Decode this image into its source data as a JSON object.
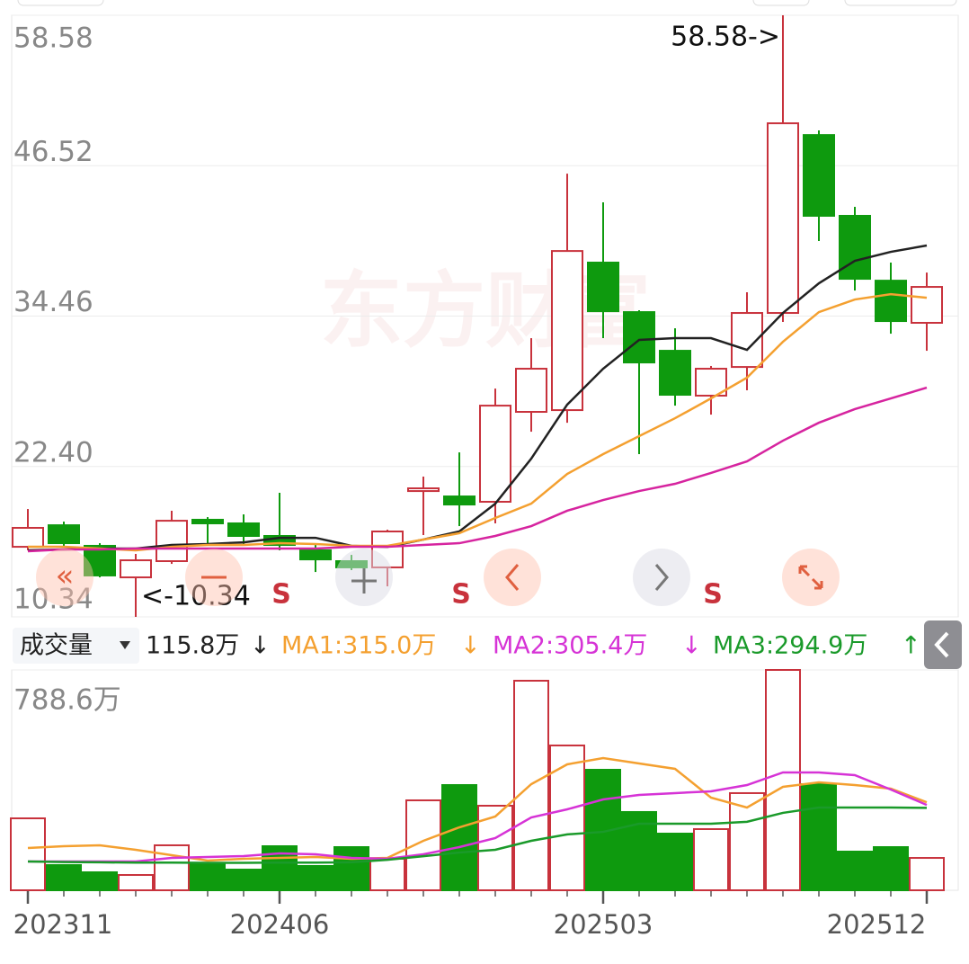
{
  "chart_data": [
    {
      "type": "candlestick",
      "categories": [
        "202311",
        null,
        null,
        null,
        null,
        null,
        null,
        "202406",
        null,
        null,
        null,
        null,
        null,
        null,
        null,
        null,
        "202503",
        null,
        null,
        null,
        null,
        null,
        null,
        null,
        null,
        "202512"
      ],
      "open": [
        15.96,
        17.69,
        16.04,
        13.51,
        14.81,
        18.13,
        17.84,
        16.83,
        15.68,
        14.81,
        14.31,
        20.43,
        20.0,
        19.57,
        26.78,
        26.92,
        38.75,
        34.78,
        31.68,
        28.08,
        30.38,
        34.71,
        48.98,
        42.5,
        37.3,
        33.92
      ],
      "high": [
        18.99,
        17.98,
        16.25,
        15.39,
        18.85,
        18.34,
        18.56,
        20.29,
        16.25,
        15.31,
        17.33,
        21.59,
        23.53,
        28.65,
        32.69,
        45.88,
        43.58,
        34.93,
        33.48,
        30.46,
        36.37,
        58.58,
        49.35,
        43.22,
        38.75,
        37.95
      ],
      "low": [
        15.68,
        15.96,
        13.51,
        10.34,
        14.59,
        16.18,
        16.11,
        15.68,
        13.94,
        14.09,
        12.79,
        16.9,
        17.62,
        17.84,
        25.19,
        25.91,
        32.69,
        23.39,
        27.28,
        26.56,
        28.51,
        33.99,
        40.48,
        36.51,
        33.05,
        31.68
      ],
      "close": [
        17.48,
        16.25,
        13.66,
        14.88,
        18.05,
        17.84,
        16.83,
        16.11,
        14.95,
        14.31,
        17.19,
        20.65,
        19.35,
        27.28,
        30.24,
        39.68,
        34.85,
        30.74,
        28.15,
        30.24,
        34.71,
        49.92,
        42.5,
        37.45,
        34.06,
        36.8
      ],
      "up_color": "#c8323c",
      "down_color": "#0e9a0e",
      "series": [
        {
          "color": "#222222",
          "values": [
            15.68,
            15.75,
            15.82,
            15.82,
            16.11,
            16.18,
            16.32,
            16.68,
            16.68,
            16.04,
            15.96,
            16.54,
            17.19,
            19.42,
            23.03,
            27.36,
            30.24,
            32.55,
            32.69,
            32.69,
            31.75,
            34.71,
            37.09,
            38.89,
            39.61,
            40.12
          ]
        },
        {
          "color": "#f4a030",
          "values": [
            15.96,
            15.96,
            15.82,
            15.68,
            15.96,
            16.11,
            16.11,
            16.25,
            16.18,
            16.04,
            16.04,
            16.54,
            17.05,
            18.27,
            19.42,
            21.8,
            23.39,
            24.83,
            26.27,
            27.86,
            29.52,
            32.4,
            34.78,
            35.79,
            36.22,
            35.93
          ]
        },
        {
          "color": "#d6249f",
          "values": [
            15.6,
            15.75,
            15.75,
            15.82,
            15.82,
            15.82,
            15.82,
            15.82,
            15.82,
            15.96,
            15.96,
            16.11,
            16.25,
            16.83,
            17.62,
            18.85,
            19.71,
            20.43,
            21.01,
            21.88,
            22.81,
            24.47,
            25.91,
            27.0,
            27.86,
            28.72
          ]
        }
      ],
      "ylim": [
        10.34,
        58.58
      ],
      "yticks": [
        10.34,
        {
          "value": 22.4,
          "label": "22.40"
        },
        34.46,
        46.52,
        58.58
      ],
      "grid": true,
      "annotations": [
        "58.58->",
        "<-10.34"
      ],
      "signals": [
        "S",
        "S",
        "S"
      ],
      "watermark": "东方财富"
    },
    {
      "type": "bar",
      "title": "成交量",
      "current_label": "115.8万",
      "current_trend": "↓",
      "values": [
        257.5,
        90.1,
        64.4,
        54.7,
        161.0,
        96.6,
        74.0,
        157.7,
        86.9,
        154.5,
        112.7,
        321.9,
        376.6,
        302.6,
        750.0,
        518.3,
        431.3,
        280.1,
        202.8,
        218.9,
        347.7,
        788.6,
        379.8,
        138.4,
        154.5,
        115.8
      ],
      "ylim": [
        0,
        788.6
      ],
      "yticks": [
        {
          "value": 788.6,
          "label": "788.6万"
        }
      ],
      "series": [
        {
          "label": "MA1:315.0万",
          "trend": "↓",
          "color": "#f4a030",
          "values": [
            151.3,
            157.7,
            161.0,
            144.9,
            125.5,
            106.2,
            112.7,
            115.9,
            119.1,
            112.7,
            115.9,
            177.0,
            225.3,
            264.0,
            379.8,
            450.7,
            473.2,
            453.9,
            434.6,
            331.6,
            296.1,
            370.2,
            386.3,
            376.6,
            363.7,
            315.0
          ]
        },
        {
          "label": "MA2:305.4万",
          "trend": "↓",
          "color": "#d633d6",
          "values": [
            103,
            103,
            103,
            103,
            115.9,
            119.1,
            122.3,
            132,
            128.8,
            115.9,
            112.7,
            128.8,
            154.5,
            186.7,
            260.7,
            289.7,
            325.1,
            341.2,
            347.7,
            354.1,
            376.6,
            421.7,
            421.7,
            412,
            360.5,
            305.4
          ]
        },
        {
          "label": "MA3:294.9万",
          "trend": "↑",
          "color": "#1a9a2a",
          "values": [
            103,
            101,
            100,
            99,
            99,
            98,
            98,
            99,
            99,
            100,
            109,
            122,
            135,
            145,
            177,
            200,
            209,
            238,
            238,
            238,
            245,
            277,
            296,
            296,
            296,
            294.9
          ]
        }
      ]
    }
  ]
}
